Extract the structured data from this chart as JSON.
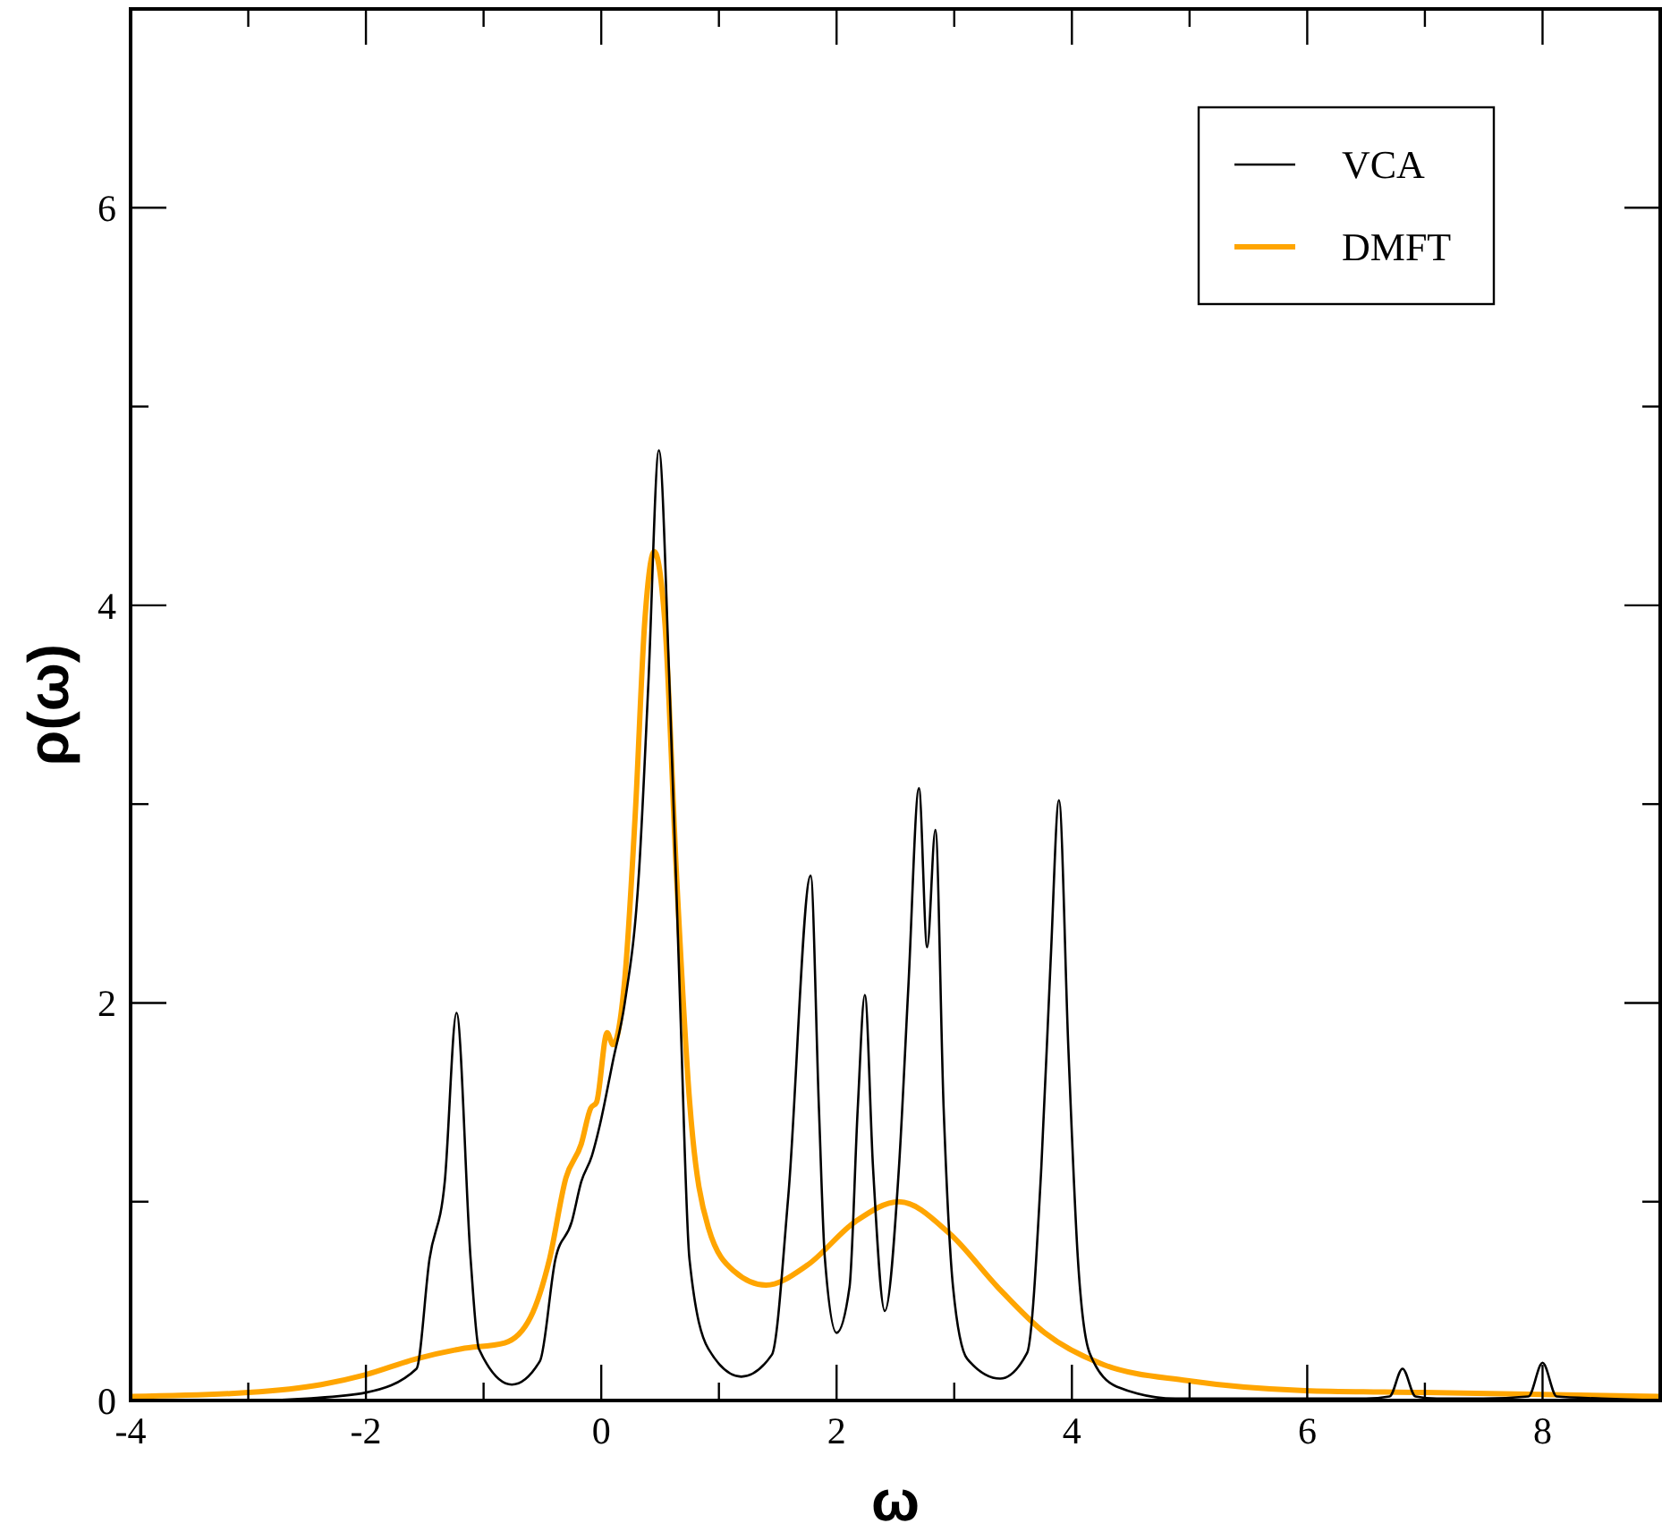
{
  "chart_data": {
    "type": "line",
    "xlabel": "ω",
    "ylabel": "ρ(ω)",
    "xlim": [
      -4,
      9
    ],
    "ylim": [
      0,
      7
    ],
    "xticks": [
      -4,
      {
        "value": -3,
        "label": null
      },
      -2,
      {
        "value": -1,
        "label": null
      },
      0,
      {
        "value": 1,
        "label": null
      },
      2,
      {
        "value": 3,
        "label": null
      },
      4,
      {
        "value": 5,
        "label": null
      },
      6,
      {
        "value": 7,
        "label": null
      },
      8,
      {
        "value": 9,
        "label": null
      }
    ],
    "yticks": [
      0,
      {
        "value": 1,
        "label": null
      },
      2,
      {
        "value": 3,
        "label": null
      },
      4,
      {
        "value": 5,
        "label": null
      },
      6,
      {
        "value": 7,
        "label": null
      }
    ],
    "legend": "top right",
    "grid": false,
    "marker": "none",
    "line_style": "solid",
    "series": [
      {
        "name": "VCA",
        "color": "#000000",
        "x": [
          -4,
          -3,
          -2.5,
          -2,
          -1.57,
          -1.46,
          -1.33,
          -1.23,
          -1.11,
          -1.04,
          -0.76,
          -0.52,
          -0.39,
          -0.25,
          -0.17,
          -0.08,
          -0.01,
          0.1,
          0.2,
          0.32,
          0.4,
          0.49,
          0.58,
          0.67,
          0.75,
          0.91,
          1.19,
          1.45,
          1.59,
          1.78,
          1.85,
          1.9,
          2.0,
          2.11,
          2.18,
          2.24,
          2.31,
          2.41,
          2.53,
          2.61,
          2.7,
          2.77,
          2.84,
          2.91,
          2.99,
          3.11,
          3.39,
          3.62,
          3.74,
          3.82,
          3.89,
          3.97,
          4.05,
          4.15,
          4.38,
          4.88,
          5.5,
          6.5,
          6.7,
          6.81,
          6.92,
          7.1,
          7.5,
          7.88,
          8.0,
          8.12,
          8.5,
          9
        ],
        "values": [
          0,
          0,
          0.01,
          0.04,
          0.16,
          0.71,
          1.1,
          1.95,
          0.71,
          0.26,
          0.08,
          0.2,
          0.71,
          0.9,
          1.1,
          1.23,
          1.39,
          1.71,
          2.0,
          2.65,
          3.6,
          4.78,
          3.6,
          2.0,
          0.71,
          0.26,
          0.12,
          0.23,
          1.03,
          2.64,
          1.47,
          0.72,
          0.34,
          0.57,
          1.47,
          2.04,
          1.17,
          0.45,
          1.17,
          2.08,
          3.08,
          2.28,
          2.87,
          1.47,
          0.57,
          0.21,
          0.11,
          0.24,
          1.17,
          2.22,
          3.02,
          1.77,
          0.72,
          0.24,
          0.07,
          0.01,
          0.01,
          0.01,
          0.02,
          0.16,
          0.02,
          0.01,
          0.01,
          0.02,
          0.19,
          0.02,
          0.01,
          0
        ]
      },
      {
        "name": "DMFT",
        "color": "#ffa500",
        "x": [
          -4,
          -3,
          -2.38,
          -2.0,
          -1.57,
          -1.19,
          -0.82,
          -0.6,
          -0.44,
          -0.3,
          -0.17,
          -0.09,
          -0.04,
          0.05,
          0.1,
          0.2,
          0.29,
          0.37,
          0.45,
          0.54,
          0.64,
          0.75,
          0.91,
          1.13,
          1.4,
          1.75,
          2.16,
          2.53,
          2.96,
          3.37,
          3.77,
          4.27,
          4.98,
          5.98,
          7.0,
          9
        ],
        "values": [
          0.02,
          0.04,
          0.08,
          0.13,
          0.21,
          0.26,
          0.29,
          0.42,
          0.71,
          1.12,
          1.29,
          1.47,
          1.5,
          1.85,
          1.79,
          2.12,
          2.96,
          3.92,
          4.27,
          3.92,
          2.64,
          1.51,
          0.87,
          0.65,
          0.58,
          0.68,
          0.9,
          1.0,
          0.84,
          0.57,
          0.34,
          0.18,
          0.1,
          0.05,
          0.04,
          0.02
        ]
      }
    ]
  }
}
